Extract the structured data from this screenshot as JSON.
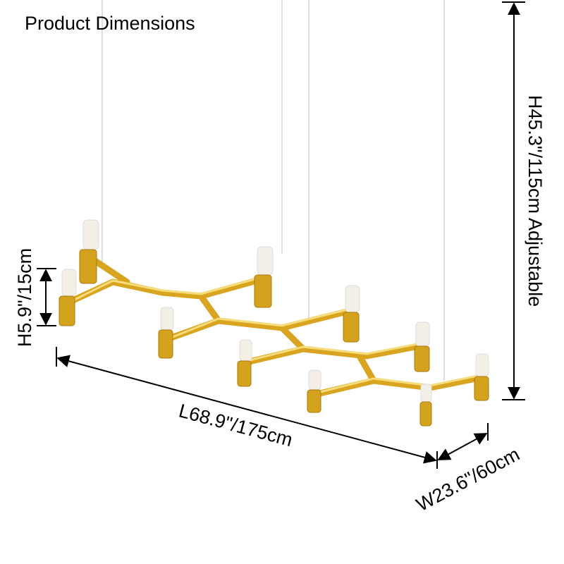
{
  "title": "Product Dimensions",
  "dimensions": {
    "height": "H45.3\"/115cm Adjustable",
    "lamp_height": "H5.9\"/15cm",
    "length": "L68.9\"/175cm",
    "width": "W23.6\"/60cm"
  }
}
